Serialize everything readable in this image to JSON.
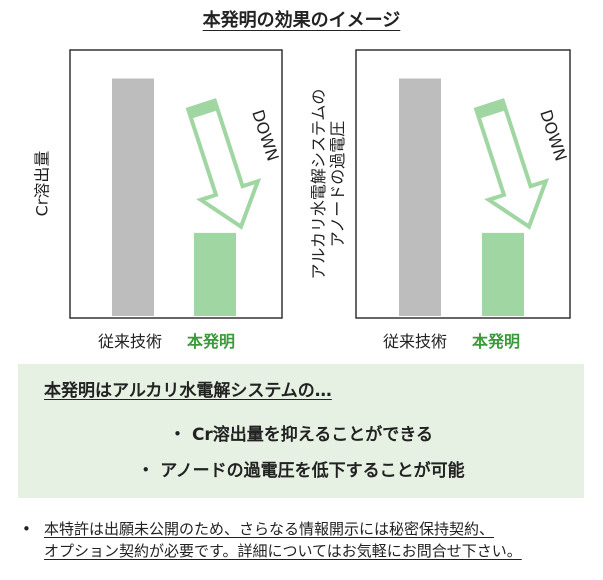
{
  "title": "本発明の効果のイメージ",
  "colors": {
    "gray_bar": "#bdbdbd",
    "green": "#9fd6a1",
    "arrow_stroke": "#9fd6a1",
    "summary_bg": "#e6f1e3",
    "highlight_text": "#3a9a3a"
  },
  "chart_data": [
    {
      "type": "bar",
      "ylabel": "Cr溶出量",
      "categories": [
        "従来技術",
        "本発明"
      ],
      "values": [
        1.0,
        0.35
      ],
      "ylim": [
        0,
        1.12
      ],
      "annotation": "DOWN"
    },
    {
      "type": "bar",
      "ylabel_lines": [
        "アルカリ水電解システムの",
        "アノードの過電圧"
      ],
      "categories": [
        "従来技術",
        "本発明"
      ],
      "values": [
        1.0,
        0.35
      ],
      "ylim": [
        0,
        1.12
      ],
      "annotation": "DOWN"
    }
  ],
  "summary": {
    "heading": "本発明はアルカリ水電解システムの…",
    "points": [
      "・ Cr溶出量を抑えることができる",
      "・ アノードの過電圧を低下することが可能"
    ]
  },
  "note": {
    "bullet": "•",
    "lines": [
      "本特許は出願未公開のため、さらなる情報開示には秘密保持契約、",
      "オプション契約が必要です。詳細についてはお気軽にお問合せ下さい。"
    ]
  }
}
